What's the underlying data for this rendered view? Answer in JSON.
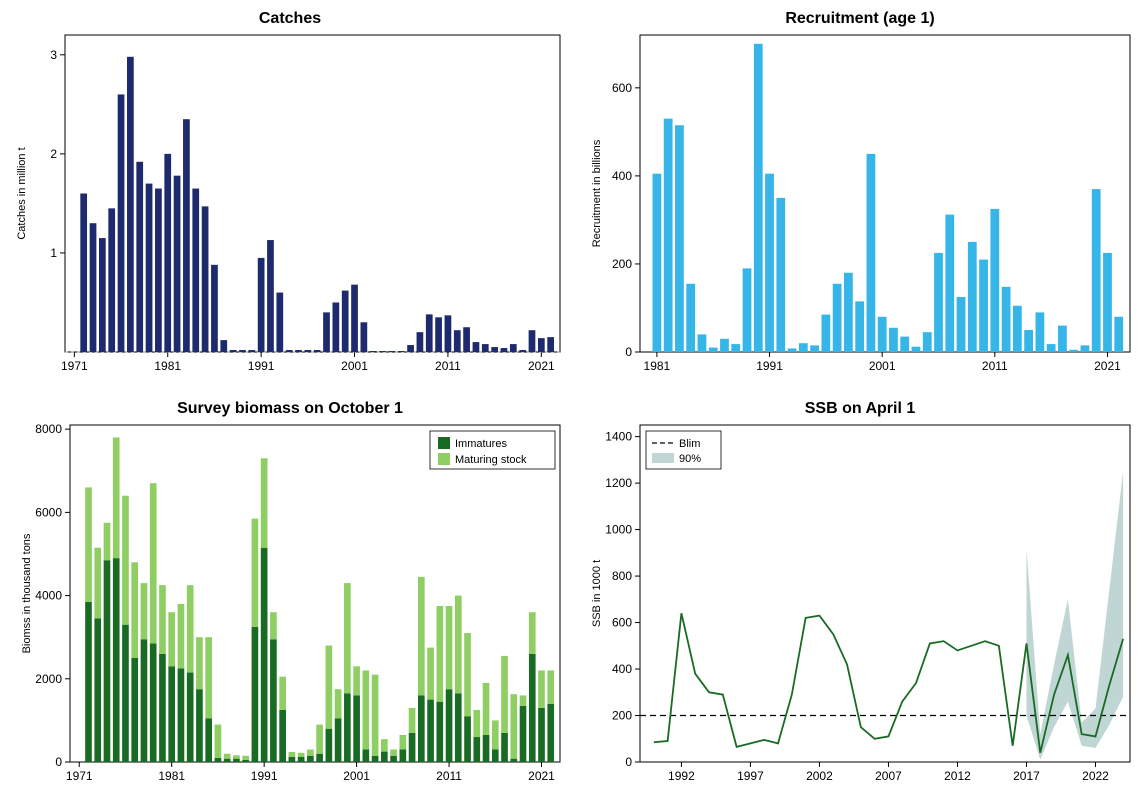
{
  "global": {
    "title_fontsize": 18,
    "axis_font": "11px Arial",
    "tick_font": "12px Arial",
    "plot_bg": "#ffffff",
    "border_color": "#000000",
    "grid_color": "#d0d0d0"
  },
  "catches": {
    "type": "bar",
    "title": "Catches",
    "ylabel": "Catches in million t",
    "xlim": [
      1970,
      2023
    ],
    "xticks": [
      1971,
      1981,
      1991,
      2001,
      2011,
      2021
    ],
    "ylim": [
      0,
      3.2
    ],
    "yticks": [
      1,
      2,
      3
    ],
    "bar_color": "#1e2a6e",
    "bar_width": 0.72,
    "years": [
      1972,
      1973,
      1974,
      1975,
      1976,
      1977,
      1978,
      1979,
      1980,
      1981,
      1982,
      1983,
      1984,
      1985,
      1986,
      1987,
      1988,
      1989,
      1990,
      1991,
      1992,
      1993,
      1994,
      1995,
      1996,
      1997,
      1998,
      1999,
      2000,
      2001,
      2002,
      2003,
      2004,
      2005,
      2006,
      2007,
      2008,
      2009,
      2010,
      2011,
      2012,
      2013,
      2014,
      2015,
      2016,
      2017,
      2018,
      2019,
      2020,
      2021,
      2022
    ],
    "values": [
      1.6,
      1.3,
      1.15,
      1.45,
      2.6,
      2.98,
      1.92,
      1.7,
      1.65,
      2.0,
      1.78,
      2.35,
      1.65,
      1.47,
      0.88,
      0.12,
      0.02,
      0.02,
      0.02,
      0.95,
      1.13,
      0.6,
      0.02,
      0.02,
      0.02,
      0.02,
      0.4,
      0.5,
      0.62,
      0.68,
      0.3,
      0.01,
      0.01,
      0.01,
      0.01,
      0.07,
      0.2,
      0.38,
      0.35,
      0.37,
      0.22,
      0.25,
      0.1,
      0.08,
      0.05,
      0.04,
      0.08,
      0.02,
      0.22,
      0.14,
      0.15
    ]
  },
  "recruitment": {
    "type": "bar",
    "title": "Recruitment (age 1)",
    "ylabel": "Recruitment in billions",
    "xlim": [
      1979.5,
      2023
    ],
    "xticks": [
      1981,
      1991,
      2001,
      2011,
      2021
    ],
    "ylim": [
      0,
      720
    ],
    "yticks": [
      0,
      200,
      400,
      600
    ],
    "bar_color": "#36b6e8",
    "bar_width": 0.78,
    "years": [
      1981,
      1982,
      1983,
      1984,
      1985,
      1986,
      1987,
      1988,
      1989,
      1990,
      1991,
      1992,
      1993,
      1994,
      1995,
      1996,
      1997,
      1998,
      1999,
      2000,
      2001,
      2002,
      2003,
      2004,
      2005,
      2006,
      2007,
      2008,
      2009,
      2010,
      2011,
      2012,
      2013,
      2014,
      2015,
      2016,
      2017,
      2018,
      2019,
      2020,
      2021,
      2022
    ],
    "values": [
      405,
      530,
      515,
      155,
      40,
      10,
      30,
      18,
      190,
      700,
      405,
      350,
      8,
      20,
      15,
      85,
      155,
      180,
      115,
      450,
      80,
      55,
      35,
      12,
      45,
      225,
      312,
      125,
      250,
      210,
      325,
      148,
      105,
      50,
      90,
      18,
      60,
      5,
      15,
      370,
      225,
      80
    ]
  },
  "biomass": {
    "type": "stacked-bar",
    "title": "Survey biomass on October 1",
    "ylabel": "Biomss in thousand tons",
    "xlim": [
      1970,
      2023
    ],
    "xticks": [
      1971,
      1981,
      1991,
      2001,
      2011,
      2021
    ],
    "ylim": [
      0,
      8100
    ],
    "yticks": [
      0,
      2000,
      4000,
      6000,
      8000
    ],
    "series": [
      {
        "name": "Immatures",
        "color": "#196b24"
      },
      {
        "name": "Maturing stock",
        "color": "#8fce63"
      }
    ],
    "bar_width": 0.72,
    "years": [
      1972,
      1973,
      1974,
      1975,
      1976,
      1977,
      1978,
      1979,
      1980,
      1981,
      1982,
      1983,
      1984,
      1985,
      1986,
      1987,
      1988,
      1989,
      1990,
      1991,
      1992,
      1993,
      1994,
      1995,
      1996,
      1997,
      1998,
      1999,
      2000,
      2001,
      2002,
      2003,
      2004,
      2005,
      2006,
      2007,
      2008,
      2009,
      2010,
      2011,
      2012,
      2013,
      2014,
      2015,
      2016,
      2017,
      2018,
      2019,
      2020,
      2021,
      2022
    ],
    "immatures": [
      3850,
      3450,
      4850,
      4900,
      3300,
      2500,
      2950,
      2850,
      2600,
      2300,
      2250,
      2150,
      1750,
      1050,
      100,
      80,
      80,
      50,
      3250,
      5150,
      2950,
      1250,
      120,
      120,
      150,
      200,
      800,
      1050,
      1650,
      1600,
      300,
      150,
      250,
      150,
      300,
      700,
      1600,
      1500,
      1450,
      1750,
      1650,
      1100,
      600,
      650,
      300,
      700,
      80,
      1350,
      2600,
      1300,
      1400
    ],
    "maturing": [
      2750,
      1700,
      900,
      2900,
      3100,
      2300,
      1350,
      3850,
      1650,
      1300,
      1550,
      2100,
      1250,
      1950,
      800,
      120,
      80,
      100,
      2600,
      2150,
      650,
      800,
      120,
      100,
      150,
      700,
      2000,
      700,
      2650,
      700,
      1900,
      1950,
      300,
      150,
      350,
      600,
      2850,
      1250,
      2300,
      2000,
      2350,
      2000,
      650,
      1250,
      700,
      1850,
      1550,
      250,
      1000,
      900,
      800
    ]
  },
  "ssb": {
    "type": "line",
    "title": "SSB on April 1",
    "ylabel": "SSB in 1000 t",
    "xlim": [
      1989,
      2024.5
    ],
    "xticks": [
      1992,
      1997,
      2002,
      2007,
      2012,
      2017,
      2022
    ],
    "ylim": [
      0,
      1450
    ],
    "yticks": [
      0,
      200,
      400,
      600,
      800,
      1000,
      1200,
      1400
    ],
    "line_color": "#196b24",
    "line_width": 1.8,
    "blim": {
      "value": 200,
      "dash": "6,4",
      "color": "#000000",
      "label": "Blim"
    },
    "ci_band": {
      "color": "#8ab5b0",
      "opacity": 0.55,
      "label": "90%"
    },
    "years": [
      1990,
      1991,
      1992,
      1993,
      1994,
      1995,
      1996,
      1997,
      1998,
      1999,
      2000,
      2001,
      2002,
      2003,
      2004,
      2005,
      2006,
      2007,
      2008,
      2009,
      2010,
      2011,
      2012,
      2013,
      2014,
      2015,
      2016,
      2017,
      2018,
      2019,
      2020,
      2021,
      2022,
      2023,
      2024
    ],
    "values": [
      85,
      90,
      640,
      380,
      300,
      290,
      65,
      80,
      95,
      80,
      290,
      620,
      630,
      550,
      420,
      150,
      100,
      110,
      260,
      340,
      510,
      520,
      480,
      500,
      520,
      500,
      70,
      510,
      40,
      290,
      460,
      120,
      110,
      330,
      530
    ],
    "ci_years": [
      2017,
      2018,
      2019,
      2020,
      2021,
      2022,
      2023,
      2024
    ],
    "ci_low": [
      200,
      10,
      150,
      260,
      70,
      60,
      160,
      280
    ],
    "ci_high": [
      920,
      120,
      420,
      700,
      170,
      230,
      740,
      1250
    ]
  }
}
